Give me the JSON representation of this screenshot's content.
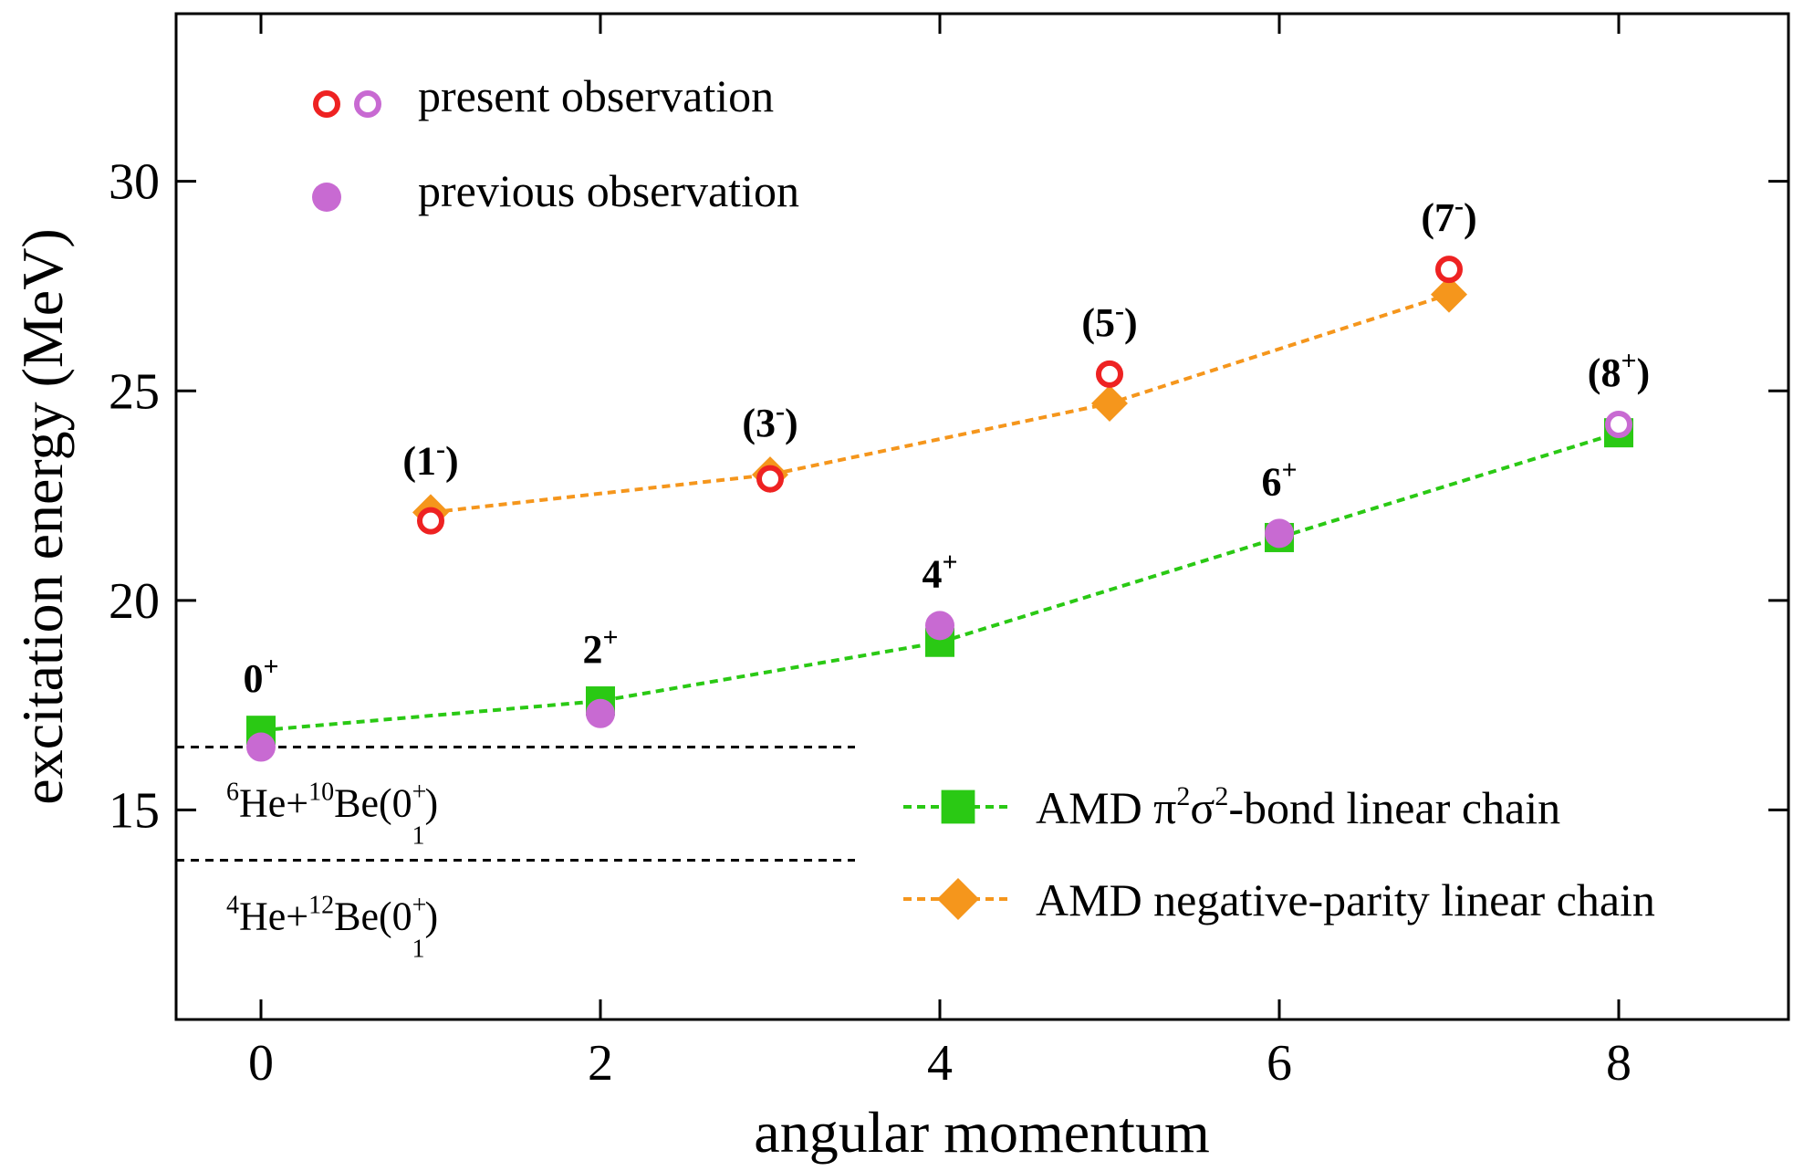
{
  "chart_data": {
    "type": "scatter",
    "title": "",
    "xlabel": "angular momentum",
    "ylabel": "excitation energy (MeV)",
    "xlim": [
      -0.5,
      9.0
    ],
    "ylim": [
      10.0,
      34.0
    ],
    "xticks": [
      "0",
      "2",
      "4",
      "6",
      "8"
    ],
    "yticks": [
      "15",
      "20",
      "25",
      "30"
    ],
    "grid": false,
    "legend_top": {
      "placement": "top-left",
      "entries": [
        {
          "label": "present observation",
          "markers": [
            "open-circle-red",
            "open-circle-violet"
          ]
        },
        {
          "label": "previous observation",
          "markers": [
            "filled-circle-violet"
          ]
        }
      ]
    },
    "legend_bottom": {
      "placement": "bottom-right",
      "entries": [
        {
          "series": "amd_pi2sigma2",
          "label_main": "AMD π",
          "sup1": "2",
          "mid": "σ",
          "sup2": "2",
          "label_end": "-bond linear chain"
        },
        {
          "series": "amd_negative",
          "label": "AMD negative-parity linear chain"
        }
      ]
    },
    "series": [
      {
        "id": "amd_pi2sigma2",
        "name": "AMD π²σ²-bond linear chain",
        "color": "#2ac914",
        "marker": "square",
        "line": "dashed",
        "x": [
          0,
          2,
          4,
          6,
          8
        ],
        "y": [
          16.9,
          17.6,
          19.0,
          21.5,
          24.0
        ]
      },
      {
        "id": "amd_negative",
        "name": "AMD negative-parity linear chain",
        "color": "#f5961c",
        "marker": "diamond",
        "line": "dashed",
        "x": [
          1,
          3,
          5,
          7
        ],
        "y": [
          22.1,
          23.0,
          24.7,
          27.3
        ]
      },
      {
        "id": "present_red",
        "name": "present observation",
        "color": "#ee2222",
        "marker": "open-circle",
        "x": [
          1,
          3,
          5,
          7
        ],
        "y": [
          21.9,
          22.9,
          25.4,
          27.9
        ]
      },
      {
        "id": "present_violet",
        "name": "present observation",
        "color": "#c86ad2",
        "marker": "open-circle",
        "x": [
          8
        ],
        "y": [
          24.2
        ]
      },
      {
        "id": "previous",
        "name": "previous observation",
        "color": "#c86ad2",
        "marker": "filled-circle",
        "x": [
          0,
          2,
          4,
          6
        ],
        "y": [
          16.5,
          17.3,
          19.4,
          21.6
        ]
      }
    ],
    "thresholds": [
      {
        "y": 16.5,
        "x_end": 3.5,
        "pre": "6",
        "name1": "He+",
        "mass2": "10",
        "name2": "Be(0",
        "sup": "+",
        "sub": "1",
        "close": ")"
      },
      {
        "y": 13.8,
        "x_end": 3.5,
        "pre": "4",
        "name1": "He+",
        "mass2": "12",
        "name2": "Be(0",
        "sup": "+",
        "sub": "1",
        "close": ")"
      }
    ],
    "annotations": [
      {
        "x": 0,
        "y": 16.9,
        "base": "0",
        "sup": "+",
        "paren": false
      },
      {
        "x": 1,
        "y": 22.1,
        "base": "1",
        "sup": "-",
        "paren": true
      },
      {
        "x": 2,
        "y": 17.6,
        "base": "2",
        "sup": "+",
        "paren": false
      },
      {
        "x": 3,
        "y": 23.0,
        "base": "3",
        "sup": "-",
        "paren": true
      },
      {
        "x": 4,
        "y": 19.4,
        "base": "4",
        "sup": "+",
        "paren": false
      },
      {
        "x": 5,
        "y": 25.4,
        "base": "5",
        "sup": "-",
        "paren": true
      },
      {
        "x": 6,
        "y": 21.6,
        "base": "6",
        "sup": "+",
        "paren": false
      },
      {
        "x": 7,
        "y": 27.9,
        "base": "7",
        "sup": "-",
        "paren": true
      },
      {
        "x": 8,
        "y": 24.2,
        "base": "8",
        "sup": "+",
        "paren": true
      }
    ]
  }
}
